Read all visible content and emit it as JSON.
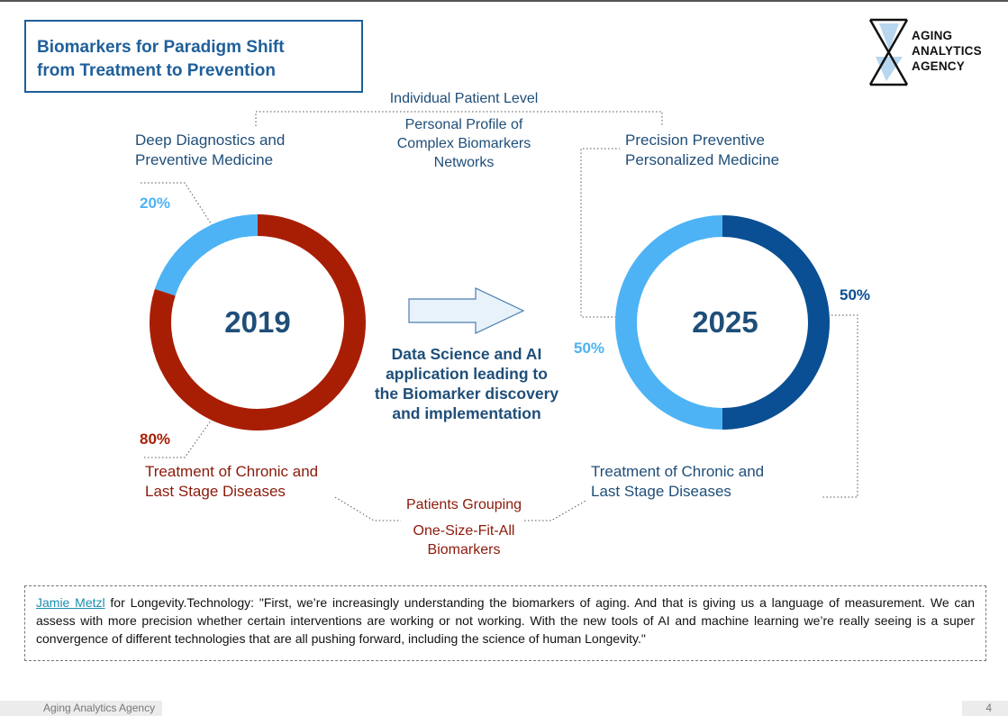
{
  "header": {
    "title_line1": "Biomarkers for Paradigm Shift",
    "title_line2": "from Treatment to Prevention"
  },
  "logo": {
    "icon": "hourglass-icon",
    "line1": "AGING",
    "line2": "ANALYTICS",
    "line3": "AGENCY"
  },
  "labels": {
    "individual_level": "Individual Patient Level",
    "personal_profile": [
      "Personal Profile of",
      "Complex Biomarkers",
      "Networks"
    ],
    "deep_diagnostics": [
      "Deep Diagnostics and",
      "Preventive Medicine"
    ],
    "precision_preventive": [
      "Precision Preventive",
      "Personalized Medicine"
    ],
    "treatment_left": [
      "Treatment of Chronic and",
      "Last Stage Diseases"
    ],
    "treatment_right": [
      "Treatment of Chronic and",
      "Last Stage Diseases"
    ],
    "patients_grouping": "Patients Grouping",
    "one_size": [
      "One-Size-Fit-All",
      "Biomarkers"
    ],
    "data_science": [
      "Data Science and AI",
      "application leading to",
      "the Biomarker discovery",
      "and implementation"
    ]
  },
  "chart_data": [
    {
      "type": "pie",
      "center_label": "2019",
      "slices": [
        {
          "label": "Deep Diagnostics and Preventive Medicine",
          "value": 20,
          "display": "20%",
          "color": "#4db3f5"
        },
        {
          "label": "Treatment of Chronic and Last Stage Diseases",
          "value": 80,
          "display": "80%",
          "color": "#a81e05"
        }
      ]
    },
    {
      "type": "pie",
      "center_label": "2025",
      "slices": [
        {
          "label": "Precision Preventive Personalized Medicine",
          "value": 50,
          "display": "50%",
          "color": "#4db3f5"
        },
        {
          "label": "Treatment of Chronic and Last Stage Diseases",
          "value": 50,
          "display": "50%",
          "color": "#0a4f94"
        }
      ]
    }
  ],
  "quote": {
    "author": "Jamie Metzl",
    "text": " for Longevity.Technology: \"First, we’re increasingly understanding the biomarkers of aging. And that is giving us a language of measurement. We can assess with more precision whether certain interventions are working or not working. With the new tools of AI and machine learning we’re really seeing is a super convergence of different technologies that are all pushing forward, including the science of human Longevity.\""
  },
  "footer": {
    "left": "Aging Analytics Agency",
    "page": "4"
  }
}
